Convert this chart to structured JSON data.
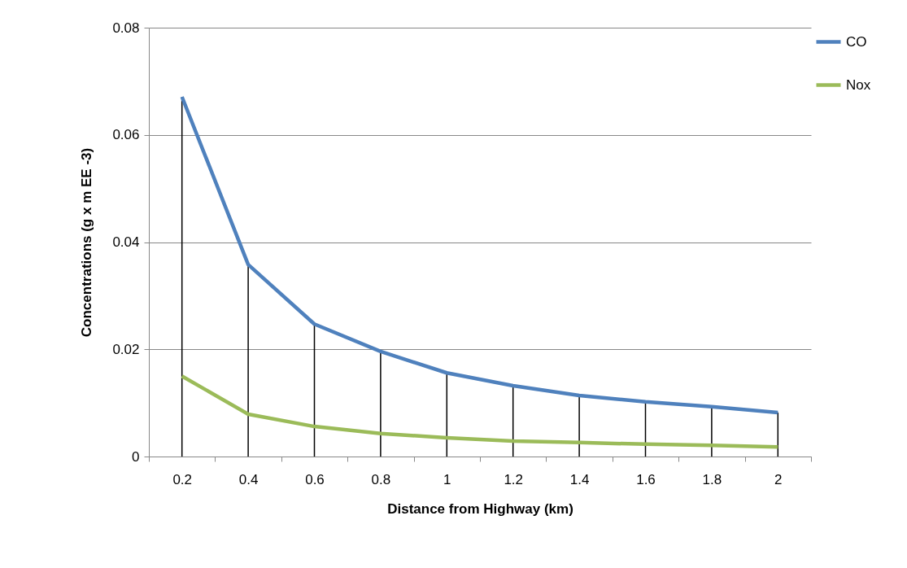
{
  "chart_data": {
    "type": "line",
    "xlabel": "Distance from Highway (km)",
    "ylabel": "Concentrations (g x m EE -3)",
    "categories": [
      "0.2",
      "0.4",
      "0.6",
      "0.8",
      "1",
      "1.2",
      "1.4",
      "1.6",
      "1.8",
      "2"
    ],
    "series": [
      {
        "name": "CO",
        "color": "#4f81bd",
        "values": [
          0.0671,
          0.0358,
          0.0247,
          0.0196,
          0.0156,
          0.0132,
          0.0114,
          0.0102,
          0.0093,
          0.0082
        ],
        "errors": [
          [
            0,
            0.0671
          ],
          [
            0,
            0.0358
          ],
          [
            0,
            0.0247
          ],
          [
            0,
            0.0196
          ],
          [
            0,
            0.0156
          ],
          [
            0,
            0.0132
          ],
          [
            0,
            0.0114
          ],
          [
            0,
            0.0102
          ],
          [
            0,
            0.0093
          ],
          [
            0,
            0.0082
          ]
        ]
      },
      {
        "name": "Nox",
        "color": "#9bbb59",
        "values": [
          0.015,
          0.0079,
          0.0056,
          0.0043,
          0.0035,
          0.0029,
          0.0026,
          0.0023,
          0.0021,
          0.0018
        ]
      }
    ],
    "ylim": [
      0,
      0.08
    ],
    "yticks": [
      0,
      0.02,
      0.04,
      0.06,
      0.08
    ],
    "grid": "y",
    "legend": "right",
    "marker": "none",
    "line_style": "solid"
  }
}
